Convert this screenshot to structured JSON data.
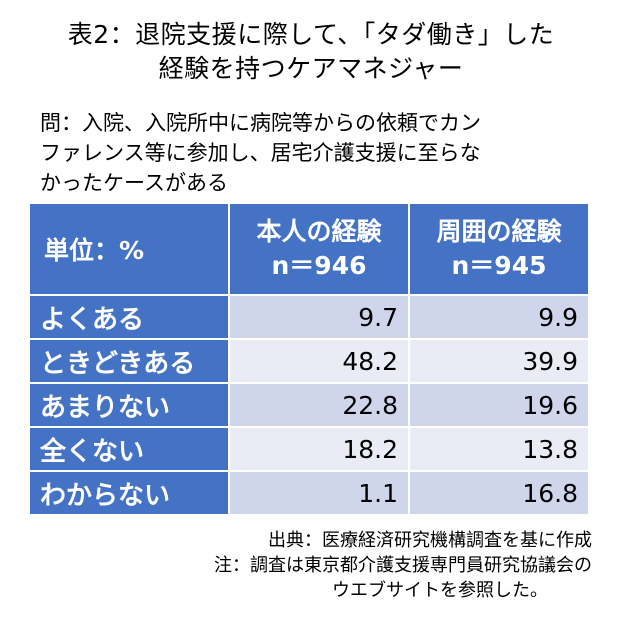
{
  "title": {
    "line1": "表2：退院支援に際して、「タダ働き」した",
    "line2": "経験を持つケアマネジャー"
  },
  "question": {
    "line1": "問：入院、入院所中に病院等からの依頼でカン",
    "line2": "ファレンス等に参加し、居宅介護支援に至らな",
    "line3": "かったケースがある"
  },
  "table": {
    "unit_label": "単位：%",
    "columns": [
      {
        "name": "本人の経験",
        "n": "n＝946"
      },
      {
        "name": "周囲の経験",
        "n": "n＝945"
      }
    ],
    "rows": [
      {
        "label": "よくある",
        "self": "9.7",
        "others": "9.9"
      },
      {
        "label": "ときどきある",
        "self": "48.2",
        "others": "39.9"
      },
      {
        "label": "あまりない",
        "self": "22.8",
        "others": "19.6"
      },
      {
        "label": "全くない",
        "self": "18.2",
        "others": "13.8"
      },
      {
        "label": "わからない",
        "self": "1.1",
        "others": "16.8"
      }
    ]
  },
  "notes": {
    "source": "出典：医療経済研究機構調査を基に作成",
    "note_line1": "注：調査は東京都介護支援専門員研究協議会の",
    "note_line2": "ウエブサイトを参照した。"
  }
}
